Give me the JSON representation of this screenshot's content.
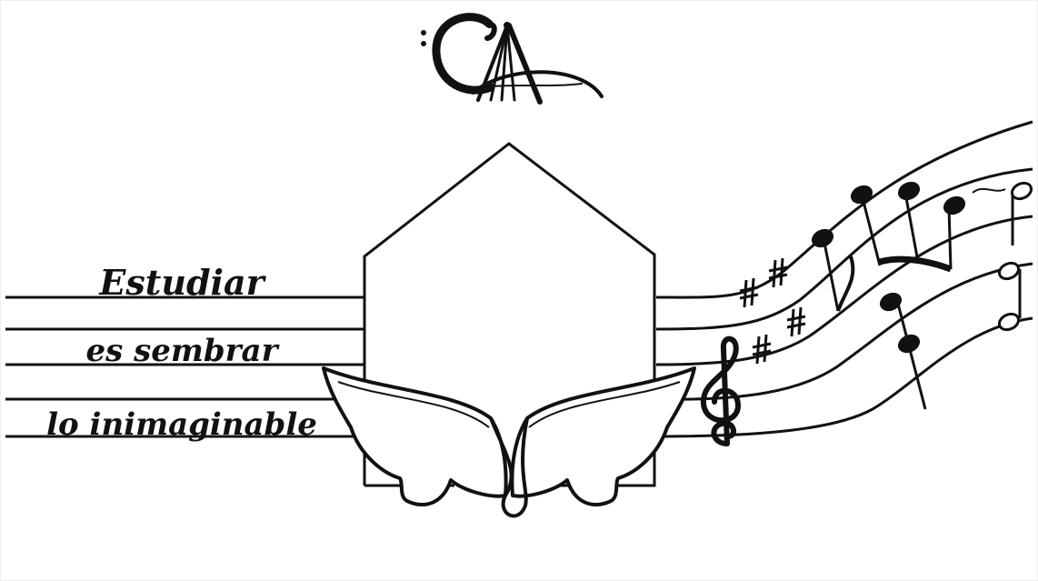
{
  "logo": {
    "text": "CA"
  },
  "motto": {
    "line1": "Estudiar",
    "line2": "es sembrar",
    "line3": "lo inimaginable"
  },
  "colors": {
    "ink": "#111111",
    "background": "#ffffff"
  },
  "icons": [
    "logo-ca",
    "house-outline",
    "angel-wings",
    "treble-clef",
    "sharp-signs",
    "music-notes"
  ]
}
